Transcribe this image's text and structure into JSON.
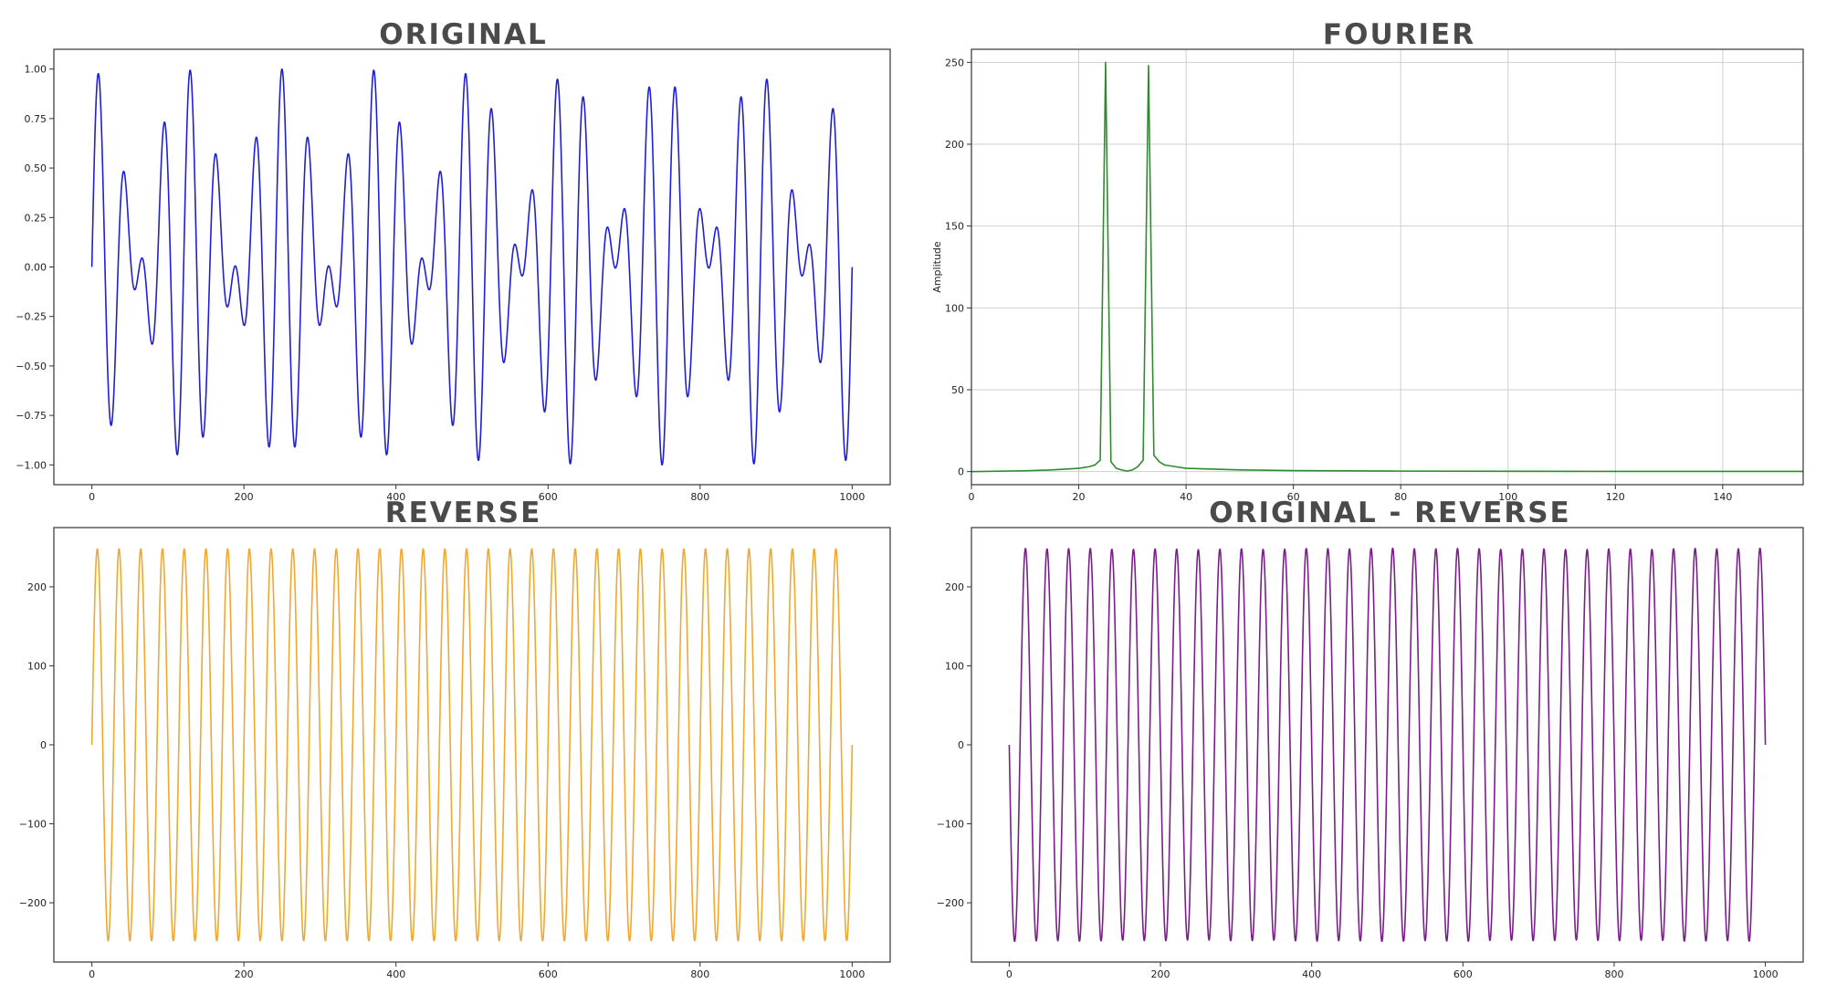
{
  "chart_data": [
    {
      "type": "line",
      "title": "ORIGINAL",
      "xlabel": "",
      "ylabel": "",
      "xlim": [
        -50,
        1050
      ],
      "ylim": [
        -1.1,
        1.1
      ],
      "xticks": [
        0,
        200,
        400,
        600,
        800,
        1000
      ],
      "yticks": [
        -1.0,
        -0.75,
        -0.5,
        -0.25,
        0.0,
        0.25,
        0.5,
        0.75,
        1.0
      ],
      "xtick_labels": [
        "0",
        "200",
        "400",
        "600",
        "800",
        "1000"
      ],
      "ytick_labels": [
        "−1.00",
        "−0.75",
        "−0.50",
        "−0.25",
        "0.00",
        "0.25",
        "0.50",
        "0.75",
        "1.00"
      ],
      "grid": false,
      "series": [
        {
          "color": "#1f1fd6",
          "function": "0.5*sin(2*pi*25*x/1000) + 0.5*sin(2*pi*33*x/1000)",
          "x_range": [
            0,
            1000
          ]
        }
      ]
    },
    {
      "type": "line",
      "title": "FOURIER",
      "xlabel": "",
      "ylabel": "Amplitude",
      "xlim": [
        0,
        155
      ],
      "ylim": [
        -8,
        258
      ],
      "xticks": [
        0,
        20,
        40,
        60,
        80,
        100,
        120,
        140
      ],
      "yticks": [
        0,
        50,
        100,
        150,
        200,
        250
      ],
      "xtick_labels": [
        "0",
        "20",
        "40",
        "60",
        "80",
        "100",
        "120",
        "140"
      ],
      "ytick_labels": [
        "0",
        "50",
        "100",
        "150",
        "200",
        "250"
      ],
      "grid": true,
      "series": [
        {
          "color": "#2e8b2e",
          "x": [
            0,
            10,
            15,
            20,
            22,
            23,
            24,
            25,
            26,
            27,
            28,
            29,
            30,
            31,
            32,
            33,
            34,
            35,
            36,
            38,
            40,
            45,
            50,
            60,
            80,
            100,
            120,
            140,
            155
          ],
          "y": [
            0,
            0.5,
            1,
            2,
            3,
            4,
            7,
            250,
            6,
            2,
            1,
            0.3,
            1,
            3,
            7,
            248,
            10,
            6,
            4,
            3,
            2,
            1.5,
            1,
            0.6,
            0.3,
            0.2,
            0.1,
            0.1,
            0.1
          ]
        }
      ]
    },
    {
      "type": "line",
      "title": "REVERSE",
      "xlabel": "",
      "ylabel": "",
      "xlim": [
        -50,
        1050
      ],
      "ylim": [
        -275,
        275
      ],
      "xticks": [
        0,
        200,
        400,
        600,
        800,
        1000
      ],
      "yticks": [
        -200,
        -100,
        0,
        100,
        200
      ],
      "xtick_labels": [
        "0",
        "200",
        "400",
        "600",
        "800",
        "1000"
      ],
      "ytick_labels": [
        "−200",
        "−100",
        "0",
        "100",
        "200"
      ],
      "grid": false,
      "series": [
        {
          "color": "#f0a830",
          "function": "248*sin(2*pi*35*x/1000)",
          "x_range": [
            0,
            1000
          ]
        }
      ]
    },
    {
      "type": "line",
      "title": "ORIGINAL - REVERSE",
      "xlabel": "",
      "ylabel": "",
      "xlim": [
        -50,
        1050
      ],
      "ylim": [
        -275,
        275
      ],
      "xticks": [
        0,
        200,
        400,
        600,
        800,
        1000
      ],
      "yticks": [
        -200,
        -100,
        0,
        100,
        200
      ],
      "xtick_labels": [
        "0",
        "200",
        "400",
        "600",
        "800",
        "1000"
      ],
      "ytick_labels": [
        "−200",
        "−100",
        "0",
        "100",
        "200"
      ],
      "grid": false,
      "series": [
        {
          "color": "#7a1f8a",
          "function": "-(0.5*sin(2*pi*25*x/1000) + 0.5*sin(2*pi*33*x/1000)) - 248*sin(2*pi*35*x/1000)",
          "x_range": [
            0,
            1000
          ]
        }
      ]
    }
  ]
}
